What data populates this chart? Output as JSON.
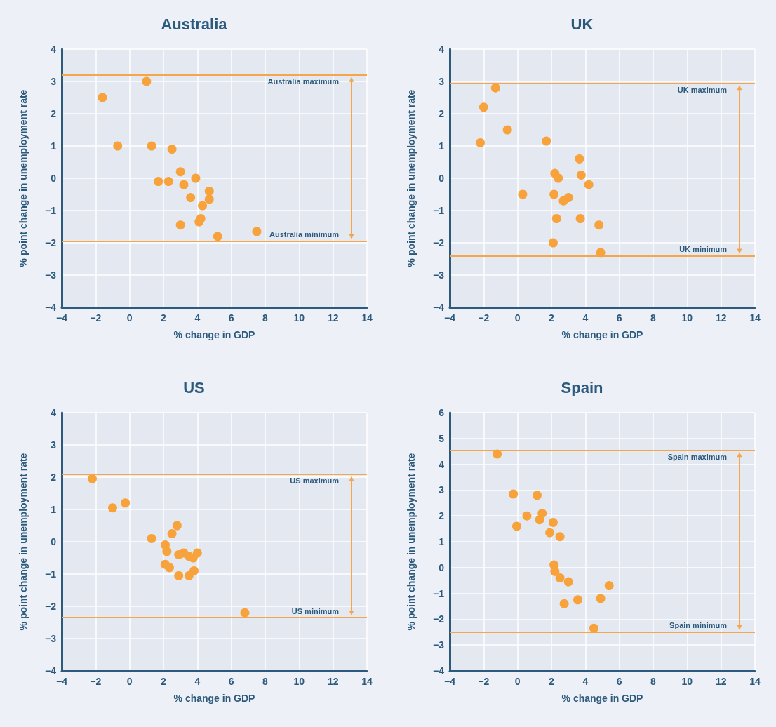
{
  "chart_data": [
    {
      "type": "scatter",
      "title": "Australia",
      "xlabel": "% change in GDP",
      "ylabel": "% point change in unemployment rate",
      "marker": "circle",
      "grid": true,
      "x": [
        1.0,
        -1.6,
        -0.7,
        1.3,
        2.5,
        3.0,
        3.9,
        1.7,
        2.3,
        3.2,
        4.7,
        4.7,
        3.6,
        4.3,
        4.2,
        4.1,
        3.0,
        5.2,
        7.5
      ],
      "series": [
        {
          "color": "#f7a23b",
          "values": [
            3.0,
            2.5,
            1.0,
            1.0,
            0.9,
            0.2,
            0.0,
            -0.1,
            -0.1,
            -0.2,
            -0.4,
            -0.65,
            -0.6,
            -0.85,
            -1.25,
            -1.35,
            -1.45,
            -1.8,
            -1.65
          ]
        }
      ],
      "xlim": [
        -4,
        14
      ],
      "xticks": [
        -4,
        -2,
        0,
        2,
        4,
        6,
        8,
        10,
        12,
        14
      ],
      "ylim": [
        -4,
        4
      ],
      "yticks": [
        -4,
        -3,
        -2,
        -1,
        0,
        1,
        2,
        3,
        4
      ],
      "ref_lines": [
        {
          "axis": "y",
          "value": 3.2,
          "label": "Australia maximum",
          "color": "#f5a54a"
        },
        {
          "axis": "y",
          "value": -1.95,
          "label": "Australia minimum",
          "color": "#f5a54a"
        }
      ]
    },
    {
      "type": "scatter",
      "title": "UK",
      "xlabel": "% change in GDP",
      "ylabel": "% point change in unemployment rate",
      "marker": "circle",
      "grid": true,
      "x": [
        -1.3,
        -2.0,
        -0.6,
        -2.2,
        1.7,
        3.65,
        3.75,
        2.2,
        2.4,
        4.2,
        0.3,
        2.15,
        2.7,
        3.0,
        2.3,
        3.7,
        4.8,
        2.1,
        4.9
      ],
      "series": [
        {
          "color": "#f7a23b",
          "values": [
            2.8,
            2.2,
            1.5,
            1.1,
            1.15,
            0.6,
            0.1,
            0.15,
            0.0,
            -0.2,
            -0.5,
            -0.5,
            -0.7,
            -0.6,
            -1.25,
            -1.25,
            -1.45,
            -2.0,
            -2.3
          ]
        }
      ],
      "xlim": [
        -4,
        14
      ],
      "xticks": [
        -4,
        -2,
        0,
        2,
        4,
        6,
        8,
        10,
        12,
        14
      ],
      "ylim": [
        -4,
        4
      ],
      "yticks": [
        -4,
        -3,
        -2,
        -1,
        0,
        1,
        2,
        3,
        4
      ],
      "ref_lines": [
        {
          "axis": "y",
          "value": 2.95,
          "label": "UK maximum",
          "color": "#f5a54a"
        },
        {
          "axis": "y",
          "value": -2.4,
          "label": "UK minimum",
          "color": "#f5a54a"
        }
      ]
    },
    {
      "type": "scatter",
      "title": "US",
      "xlabel": "% change in GDP",
      "ylabel": "% point change in unemployment rate",
      "marker": "circle",
      "grid": true,
      "x": [
        -2.2,
        -1.0,
        -0.25,
        1.3,
        2.8,
        2.5,
        2.1,
        2.2,
        2.9,
        3.2,
        3.5,
        3.75,
        4.0,
        2.1,
        2.35,
        2.9,
        3.5,
        3.8,
        6.8
      ],
      "series": [
        {
          "color": "#f7a23b",
          "values": [
            1.95,
            1.05,
            1.2,
            0.1,
            0.5,
            0.25,
            -0.1,
            -0.3,
            -0.4,
            -0.35,
            -0.45,
            -0.5,
            -0.35,
            -0.7,
            -0.8,
            -1.05,
            -1.05,
            -0.9,
            -2.2
          ]
        }
      ],
      "xlim": [
        -4,
        14
      ],
      "xticks": [
        -4,
        -2,
        0,
        2,
        4,
        6,
        8,
        10,
        12,
        14
      ],
      "ylim": [
        -4,
        4
      ],
      "yticks": [
        -4,
        -3,
        -2,
        -1,
        0,
        1,
        2,
        3,
        4
      ],
      "ref_lines": [
        {
          "axis": "y",
          "value": 2.1,
          "label": "US maximum",
          "color": "#f5a54a"
        },
        {
          "axis": "y",
          "value": -2.35,
          "label": "US minimum",
          "color": "#f5a54a"
        }
      ]
    },
    {
      "type": "scatter",
      "title": "Spain",
      "xlabel": "% change in GDP",
      "ylabel": "% point change in unemployment rate",
      "marker": "circle",
      "grid": true,
      "x": [
        -1.2,
        -0.25,
        1.15,
        0.55,
        1.45,
        1.3,
        2.1,
        -0.05,
        1.9,
        2.5,
        2.15,
        2.2,
        2.5,
        3.0,
        5.4,
        4.9,
        3.55,
        2.75,
        4.5
      ],
      "series": [
        {
          "color": "#f7a23b",
          "values": [
            4.4,
            2.85,
            2.8,
            2.0,
            2.1,
            1.85,
            1.75,
            1.6,
            1.35,
            1.2,
            0.1,
            -0.15,
            -0.4,
            -0.55,
            -0.7,
            -1.2,
            -1.25,
            -1.4,
            -2.35
          ]
        }
      ],
      "xlim": [
        -4,
        14
      ],
      "xticks": [
        -4,
        -2,
        0,
        2,
        4,
        6,
        8,
        10,
        12,
        14
      ],
      "ylim": [
        -4,
        6
      ],
      "yticks": [
        -4,
        -3,
        -2,
        -1,
        0,
        1,
        2,
        3,
        4,
        5,
        6
      ],
      "ref_lines": [
        {
          "axis": "y",
          "value": 4.55,
          "label": "Spain maximum",
          "color": "#f5a54a"
        },
        {
          "axis": "y",
          "value": -2.5,
          "label": "Spain minimum",
          "color": "#f5a54a"
        }
      ]
    }
  ]
}
